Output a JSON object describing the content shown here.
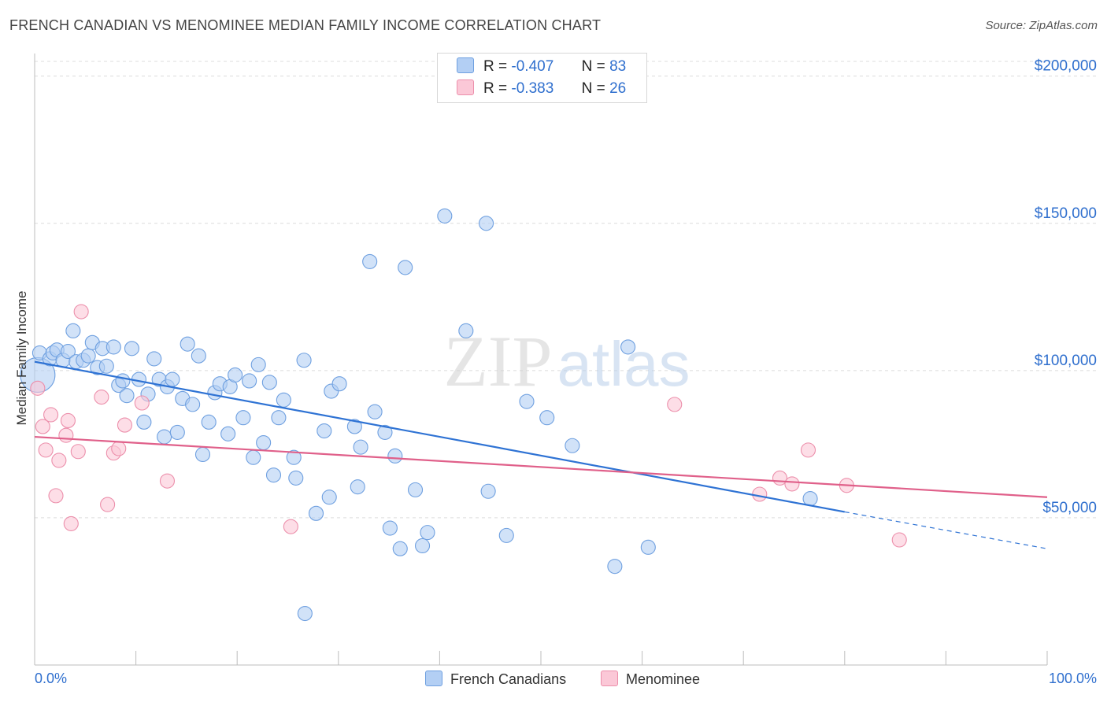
{
  "title": "FRENCH CANADIAN VS MENOMINEE MEDIAN FAMILY INCOME CORRELATION CHART",
  "source": "Source: ZipAtlas.com",
  "watermark": {
    "zip": "ZIP",
    "atlas": "atlas"
  },
  "legend": {
    "r_label": "R =",
    "n_label": "N =",
    "rows": [
      {
        "r": "-0.407",
        "n": "83",
        "color": "#b3cff4",
        "border": "#6fa0e0"
      },
      {
        "r": "-0.383",
        "n": "26",
        "color": "#fbc8d7",
        "border": "#ec8fab"
      }
    ]
  },
  "bottom_legend": [
    {
      "label": "French Canadians",
      "color": "#b3cff4",
      "border": "#6fa0e0"
    },
    {
      "label": "Menominee",
      "color": "#fbc8d7",
      "border": "#ec8fab"
    }
  ],
  "chart_data": {
    "type": "scatter",
    "title": "FRENCH CANADIAN VS MENOMINEE MEDIAN FAMILY INCOME CORRELATION CHART",
    "ylabel": "Median Family Income",
    "xlabel": "",
    "xlim": [
      0,
      100
    ],
    "ylim": [
      0,
      205000
    ],
    "x_tick_labels": [
      "0.0%",
      "100.0%"
    ],
    "y_ticks": [
      50000,
      100000,
      150000,
      200000
    ],
    "y_tick_labels": [
      "$50,000",
      "$100,000",
      "$150,000",
      "$200,000"
    ],
    "grid": "horizontal dashed",
    "series": [
      {
        "name": "French Canadians",
        "color": "#6fa0e0",
        "fill": "#b3cff4",
        "trend": {
          "x0": 0,
          "y0": 103000,
          "x1": 80,
          "y1": 52000,
          "dashed_to_x": 100,
          "dashed_to_y": 39500,
          "color": "#2f73d4"
        },
        "points": [
          [
            0.3,
            98500
          ],
          [
            0.5,
            106000
          ],
          [
            1.5,
            104000
          ],
          [
            1.8,
            106000
          ],
          [
            2.2,
            107000
          ],
          [
            2.8,
            103500
          ],
          [
            3.3,
            106500
          ],
          [
            3.8,
            113500
          ],
          [
            4.1,
            103000
          ],
          [
            4.8,
            103500
          ],
          [
            5.3,
            105000
          ],
          [
            5.7,
            109500
          ],
          [
            6.2,
            101000
          ],
          [
            6.7,
            107500
          ],
          [
            7.1,
            101500
          ],
          [
            7.8,
            108000
          ],
          [
            8.3,
            95000
          ],
          [
            8.7,
            96500
          ],
          [
            9.1,
            91500
          ],
          [
            9.6,
            107500
          ],
          [
            10.3,
            97000
          ],
          [
            10.8,
            82500
          ],
          [
            11.2,
            92000
          ],
          [
            11.8,
            104000
          ],
          [
            12.3,
            97000
          ],
          [
            12.8,
            77500
          ],
          [
            13.1,
            94500
          ],
          [
            13.6,
            97000
          ],
          [
            14.1,
            79000
          ],
          [
            14.6,
            90500
          ],
          [
            15.1,
            109000
          ],
          [
            15.6,
            88500
          ],
          [
            16.2,
            105000
          ],
          [
            16.6,
            71500
          ],
          [
            17.2,
            82500
          ],
          [
            17.8,
            92500
          ],
          [
            18.3,
            95500
          ],
          [
            19.1,
            78500
          ],
          [
            19.3,
            94500
          ],
          [
            19.8,
            98500
          ],
          [
            20.6,
            84000
          ],
          [
            21.2,
            96500
          ],
          [
            21.6,
            70500
          ],
          [
            22.1,
            102000
          ],
          [
            22.6,
            75500
          ],
          [
            23.2,
            96000
          ],
          [
            23.6,
            64500
          ],
          [
            24.1,
            84000
          ],
          [
            24.6,
            90000
          ],
          [
            25.6,
            70500
          ],
          [
            25.8,
            63500
          ],
          [
            26.6,
            103500
          ],
          [
            26.7,
            17500
          ],
          [
            27.8,
            51500
          ],
          [
            28.6,
            79500
          ],
          [
            29.1,
            57000
          ],
          [
            29.3,
            93000
          ],
          [
            30.1,
            95500
          ],
          [
            31.6,
            81000
          ],
          [
            31.9,
            60500
          ],
          [
            32.2,
            74000
          ],
          [
            33.1,
            137000
          ],
          [
            33.6,
            86000
          ],
          [
            34.6,
            79000
          ],
          [
            35.1,
            46500
          ],
          [
            35.6,
            71000
          ],
          [
            36.1,
            39500
          ],
          [
            36.6,
            135000
          ],
          [
            37.6,
            59500
          ],
          [
            38.3,
            40500
          ],
          [
            38.8,
            45000
          ],
          [
            40.5,
            152500
          ],
          [
            42.6,
            113500
          ],
          [
            44.6,
            150000
          ],
          [
            44.8,
            59000
          ],
          [
            46.6,
            44000
          ],
          [
            48.6,
            89500
          ],
          [
            50.6,
            84000
          ],
          [
            53.1,
            74500
          ],
          [
            57.3,
            33500
          ],
          [
            58.6,
            108000
          ],
          [
            60.6,
            40000
          ],
          [
            76.6,
            56500
          ]
        ]
      },
      {
        "name": "Menominee",
        "color": "#ec8fab",
        "fill": "#fbc8d7",
        "trend": {
          "x0": 0,
          "y0": 77500,
          "x1": 100,
          "y1": 57000,
          "color": "#e0608a"
        },
        "points": [
          [
            0.3,
            94000
          ],
          [
            0.8,
            81000
          ],
          [
            1.1,
            73000
          ],
          [
            1.6,
            85000
          ],
          [
            2.1,
            57500
          ],
          [
            2.4,
            69500
          ],
          [
            3.1,
            78000
          ],
          [
            3.3,
            83000
          ],
          [
            3.6,
            48000
          ],
          [
            4.3,
            72500
          ],
          [
            4.6,
            120000
          ],
          [
            6.6,
            91000
          ],
          [
            7.2,
            54500
          ],
          [
            7.8,
            72000
          ],
          [
            8.3,
            73500
          ],
          [
            8.9,
            81500
          ],
          [
            10.6,
            89000
          ],
          [
            13.1,
            62500
          ],
          [
            25.3,
            47000
          ],
          [
            63.2,
            88500
          ],
          [
            71.6,
            58000
          ],
          [
            73.6,
            63500
          ],
          [
            74.8,
            61500
          ],
          [
            76.4,
            73000
          ],
          [
            80.2,
            61000
          ],
          [
            85.4,
            42500
          ]
        ]
      }
    ]
  }
}
